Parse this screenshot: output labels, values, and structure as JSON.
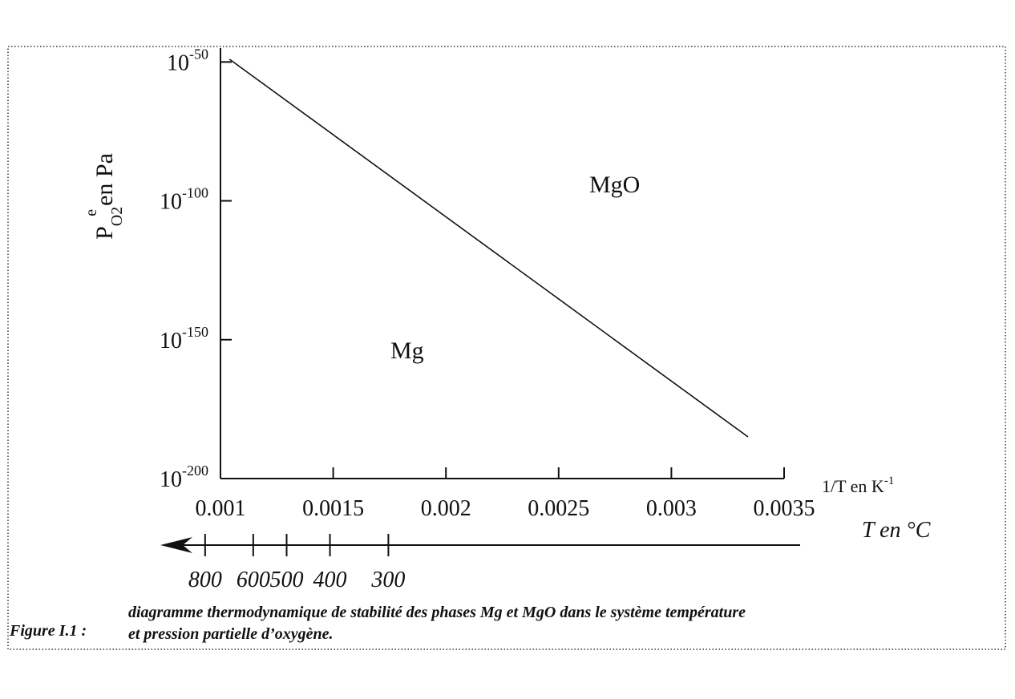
{
  "chart_data": {
    "type": "line",
    "x": [
      0.00104,
      0.00334
    ],
    "series": [
      {
        "color": "#111111",
        "values": [
          1e-49,
          1e-185
        ]
      }
    ],
    "xlim": [
      0.001,
      0.0035
    ],
    "xticks": [
      0.001,
      0.0015,
      0.002,
      0.0025,
      0.003,
      0.0035
    ],
    "ylim": [
      1e-200,
      1e-45
    ],
    "log_y": true,
    "yticks": [
      {
        "value": 1e-50,
        "label": "10-50"
      },
      {
        "value": 1e-100,
        "label": "10-100"
      },
      {
        "value": 1e-150,
        "label": "10-150"
      },
      {
        "value": 1e-200,
        "label": "10-200"
      }
    ],
    "x_label": "1/T en K",
    "x_label_sup": "-1",
    "y_label": "P",
    "y_label_sub": "O2",
    "y_label_sup": "e",
    "y_label_rest": "en Pa",
    "t_axis_label": "T en °C",
    "t_ticks": [
      800,
      600,
      500,
      400,
      300
    ],
    "annotations": [
      "MgO",
      "Mg"
    ],
    "caption_label": "Figure I.1 :",
    "caption_lines": [
      "diagramme thermodynamique de stabilité des phases Mg et MgO dans le système température",
      "et pression partielle d’oxygène."
    ]
  }
}
